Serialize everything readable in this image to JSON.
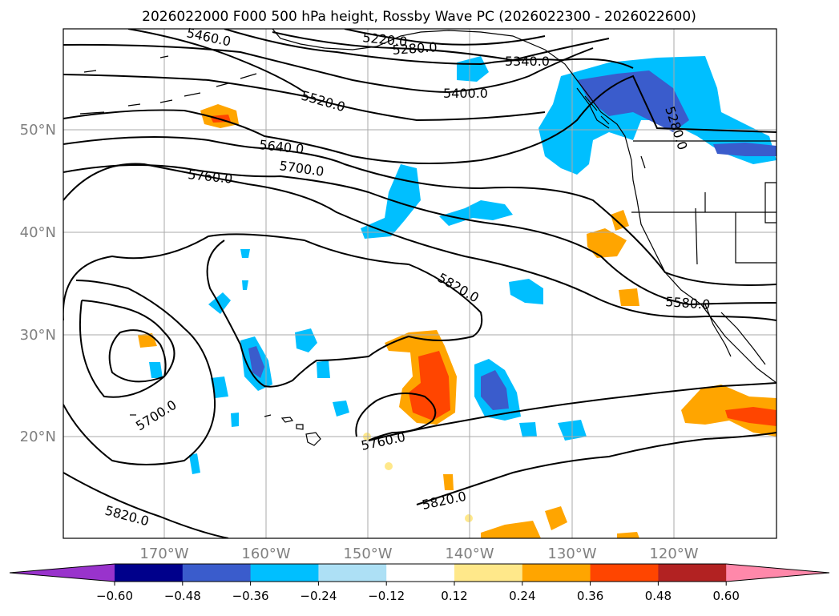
{
  "title": "2026022000 F000 500 hPa height, Rossby Wave PC (2026022300 - 2026022600)",
  "lat_labels": [
    "50°N",
    "40°N",
    "30°N",
    "20°N"
  ],
  "lon_labels": [
    "170°W",
    "160°W",
    "150°W",
    "140°W",
    "130°W",
    "120°W"
  ],
  "contour_labels": [
    "5460.0",
    "5220.0",
    "5280.0",
    "5340.0",
    "5400.0",
    "5520.0",
    "5280.0",
    "5640.0",
    "5700.0",
    "5760.0",
    "5820.0",
    "5580.0",
    "5700.0",
    "5760.0",
    "5820.0",
    "5820.0"
  ],
  "colorbar": {
    "tick_labels": [
      "−0.60",
      "−0.48",
      "−0.36",
      "−0.24",
      "−0.12",
      "0.12",
      "0.24",
      "0.36",
      "0.48",
      "0.60"
    ],
    "colors": [
      "#9933cc",
      "#00008b",
      "#3a5ccc",
      "#00bfff",
      "#ade0f5",
      "#ffffff",
      "#ffe88a",
      "#ffa500",
      "#ff4500",
      "#b22222",
      "#ff88aa"
    ]
  }
}
